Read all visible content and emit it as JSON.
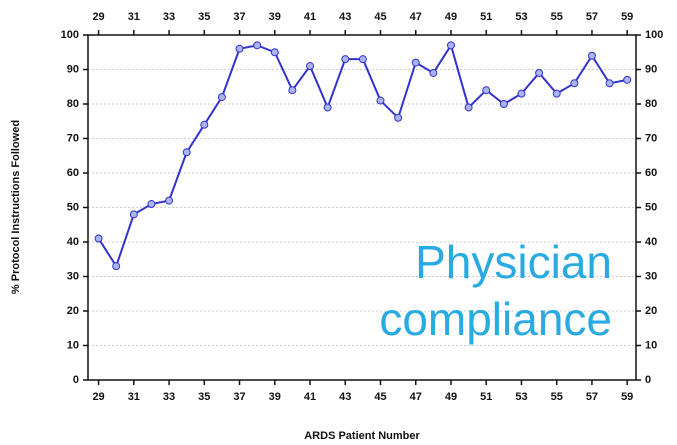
{
  "chart_data": {
    "type": "line",
    "xlabel": "ARDS Patient Number",
    "ylabel": "% Protocol Instructions Followed",
    "annotations": [
      "Physician",
      "compliance"
    ],
    "x": [
      29,
      30,
      31,
      32,
      33,
      34,
      35,
      36,
      37,
      38,
      39,
      40,
      41,
      42,
      43,
      44,
      45,
      46,
      47,
      48,
      49,
      50,
      51,
      52,
      53,
      54,
      55,
      56,
      57,
      58,
      59
    ],
    "series": [
      {
        "color": "#3333cc",
        "marker_color": "#a9b4f0",
        "values": [
          41,
          33,
          48,
          51,
          52,
          66,
          74,
          82,
          96,
          97,
          95,
          84,
          91,
          79,
          93,
          93,
          81,
          76,
          92,
          89,
          97,
          79,
          84,
          80,
          83,
          89,
          83,
          86,
          94,
          86,
          87
        ]
      }
    ],
    "xlim": [
      28.4,
      59.5
    ],
    "xticks": [
      29,
      31,
      33,
      35,
      37,
      39,
      41,
      43,
      45,
      47,
      49,
      51,
      53,
      55,
      57,
      59
    ],
    "ylim": [
      0,
      100
    ],
    "yticks": [
      0,
      10,
      20,
      30,
      40,
      50,
      60,
      70,
      80,
      90,
      100
    ],
    "grid": true,
    "annotation_color": "#29abe2"
  }
}
